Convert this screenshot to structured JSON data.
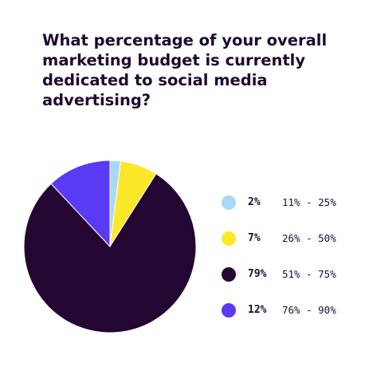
{
  "chart_data": {
    "type": "pie",
    "title": "What percentage of your overall marketing budget is currently dedicated to social media advertising?",
    "slices": [
      {
        "label": "11% - 25%",
        "value": 2,
        "value_label": "2%",
        "color": "#a8d8f8"
      },
      {
        "label": "26% - 50%",
        "value": 7,
        "value_label": "7%",
        "color": "#fbe828"
      },
      {
        "label": "51% - 75%",
        "value": 79,
        "value_label": "79%",
        "color": "#240633"
      },
      {
        "label": "76% - 90%",
        "value": 12,
        "value_label": "12%",
        "color": "#5a3af5"
      }
    ],
    "start_angle_deg": 0,
    "direction": "clockwise",
    "legend_position": "right"
  }
}
